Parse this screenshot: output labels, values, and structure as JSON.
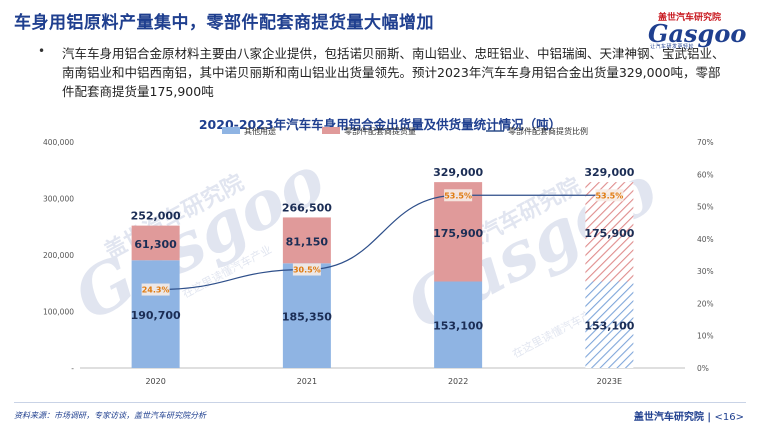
{
  "header": {
    "title": "车身用铝原料产量集中，零部件配套商提货量大幅增加",
    "logo_badge": "盖世汽车研究院",
    "logo_mark": "Gasgoo",
    "logo_sub": "让汽车研发更轻松"
  },
  "body": {
    "bullet": "•",
    "paragraph": "汽车车身用铝合金原材料主要由八家企业提供，包括诺贝丽斯、南山铝业、忠旺铝业、中铝瑞闽、天津神钢、宝武铝业、南南铝业和中铝西南铝，其中诺贝丽斯和南山铝业出货量领先。预计2023年汽车车身用铝合金出货量329,000吨，零部件配套商提货量175,900吨"
  },
  "watermark": {
    "mark": "Gasgoo",
    "text": "盖世汽车研究院",
    "slogan": "在这里读懂汽车产业"
  },
  "chart_data": {
    "type": "bar",
    "title": "2020-2023年汽车车身用铝合金出货量及供货量统计情况（吨）",
    "categories": [
      "2020",
      "2021",
      "2022",
      "2023E"
    ],
    "series": [
      {
        "name": "其他用途",
        "values": [
          190700,
          185350,
          153100,
          153100
        ],
        "value_labels": [
          "190,700",
          "185,350",
          "153,100",
          "153,100"
        ],
        "color": "#8fb4e3"
      },
      {
        "name": "零部件配套商提货量",
        "values": [
          61300,
          81150,
          175900,
          175900
        ],
        "value_labels": [
          "61,300",
          "81,150",
          "175,900",
          "175,900"
        ],
        "color": "#e09a9a"
      }
    ],
    "totals": [
      252000,
      266500,
      329000,
      329000
    ],
    "total_labels": [
      "252,000",
      "266,500",
      "329,000",
      "329,000"
    ],
    "line": {
      "name": "零部件配套商提货比例",
      "values": [
        24.3,
        30.5,
        53.5,
        53.5
      ],
      "labels": [
        "24.3%",
        "30.5%",
        "53.5%",
        "53.5%"
      ],
      "color": "#2e4f8a",
      "label_color": "#e07b10"
    },
    "stacked": true,
    "forecast_hatched": "2023E",
    "y_left": {
      "min": 0,
      "max": 400000,
      "ticks": [
        "-",
        "100,000",
        "200,000",
        "300,000",
        "400,000"
      ]
    },
    "y_right": {
      "min": 0,
      "max": 70,
      "ticks": [
        "0%",
        "10%",
        "20%",
        "30%",
        "40%",
        "50%",
        "60%",
        "70%"
      ]
    },
    "legend_position": "top",
    "grid": false
  },
  "footer": {
    "source": "资料来源：市场调研，专家访谈，盖世汽车研究院分析",
    "brand": "盖世汽车研究院",
    "page": "<16>"
  }
}
